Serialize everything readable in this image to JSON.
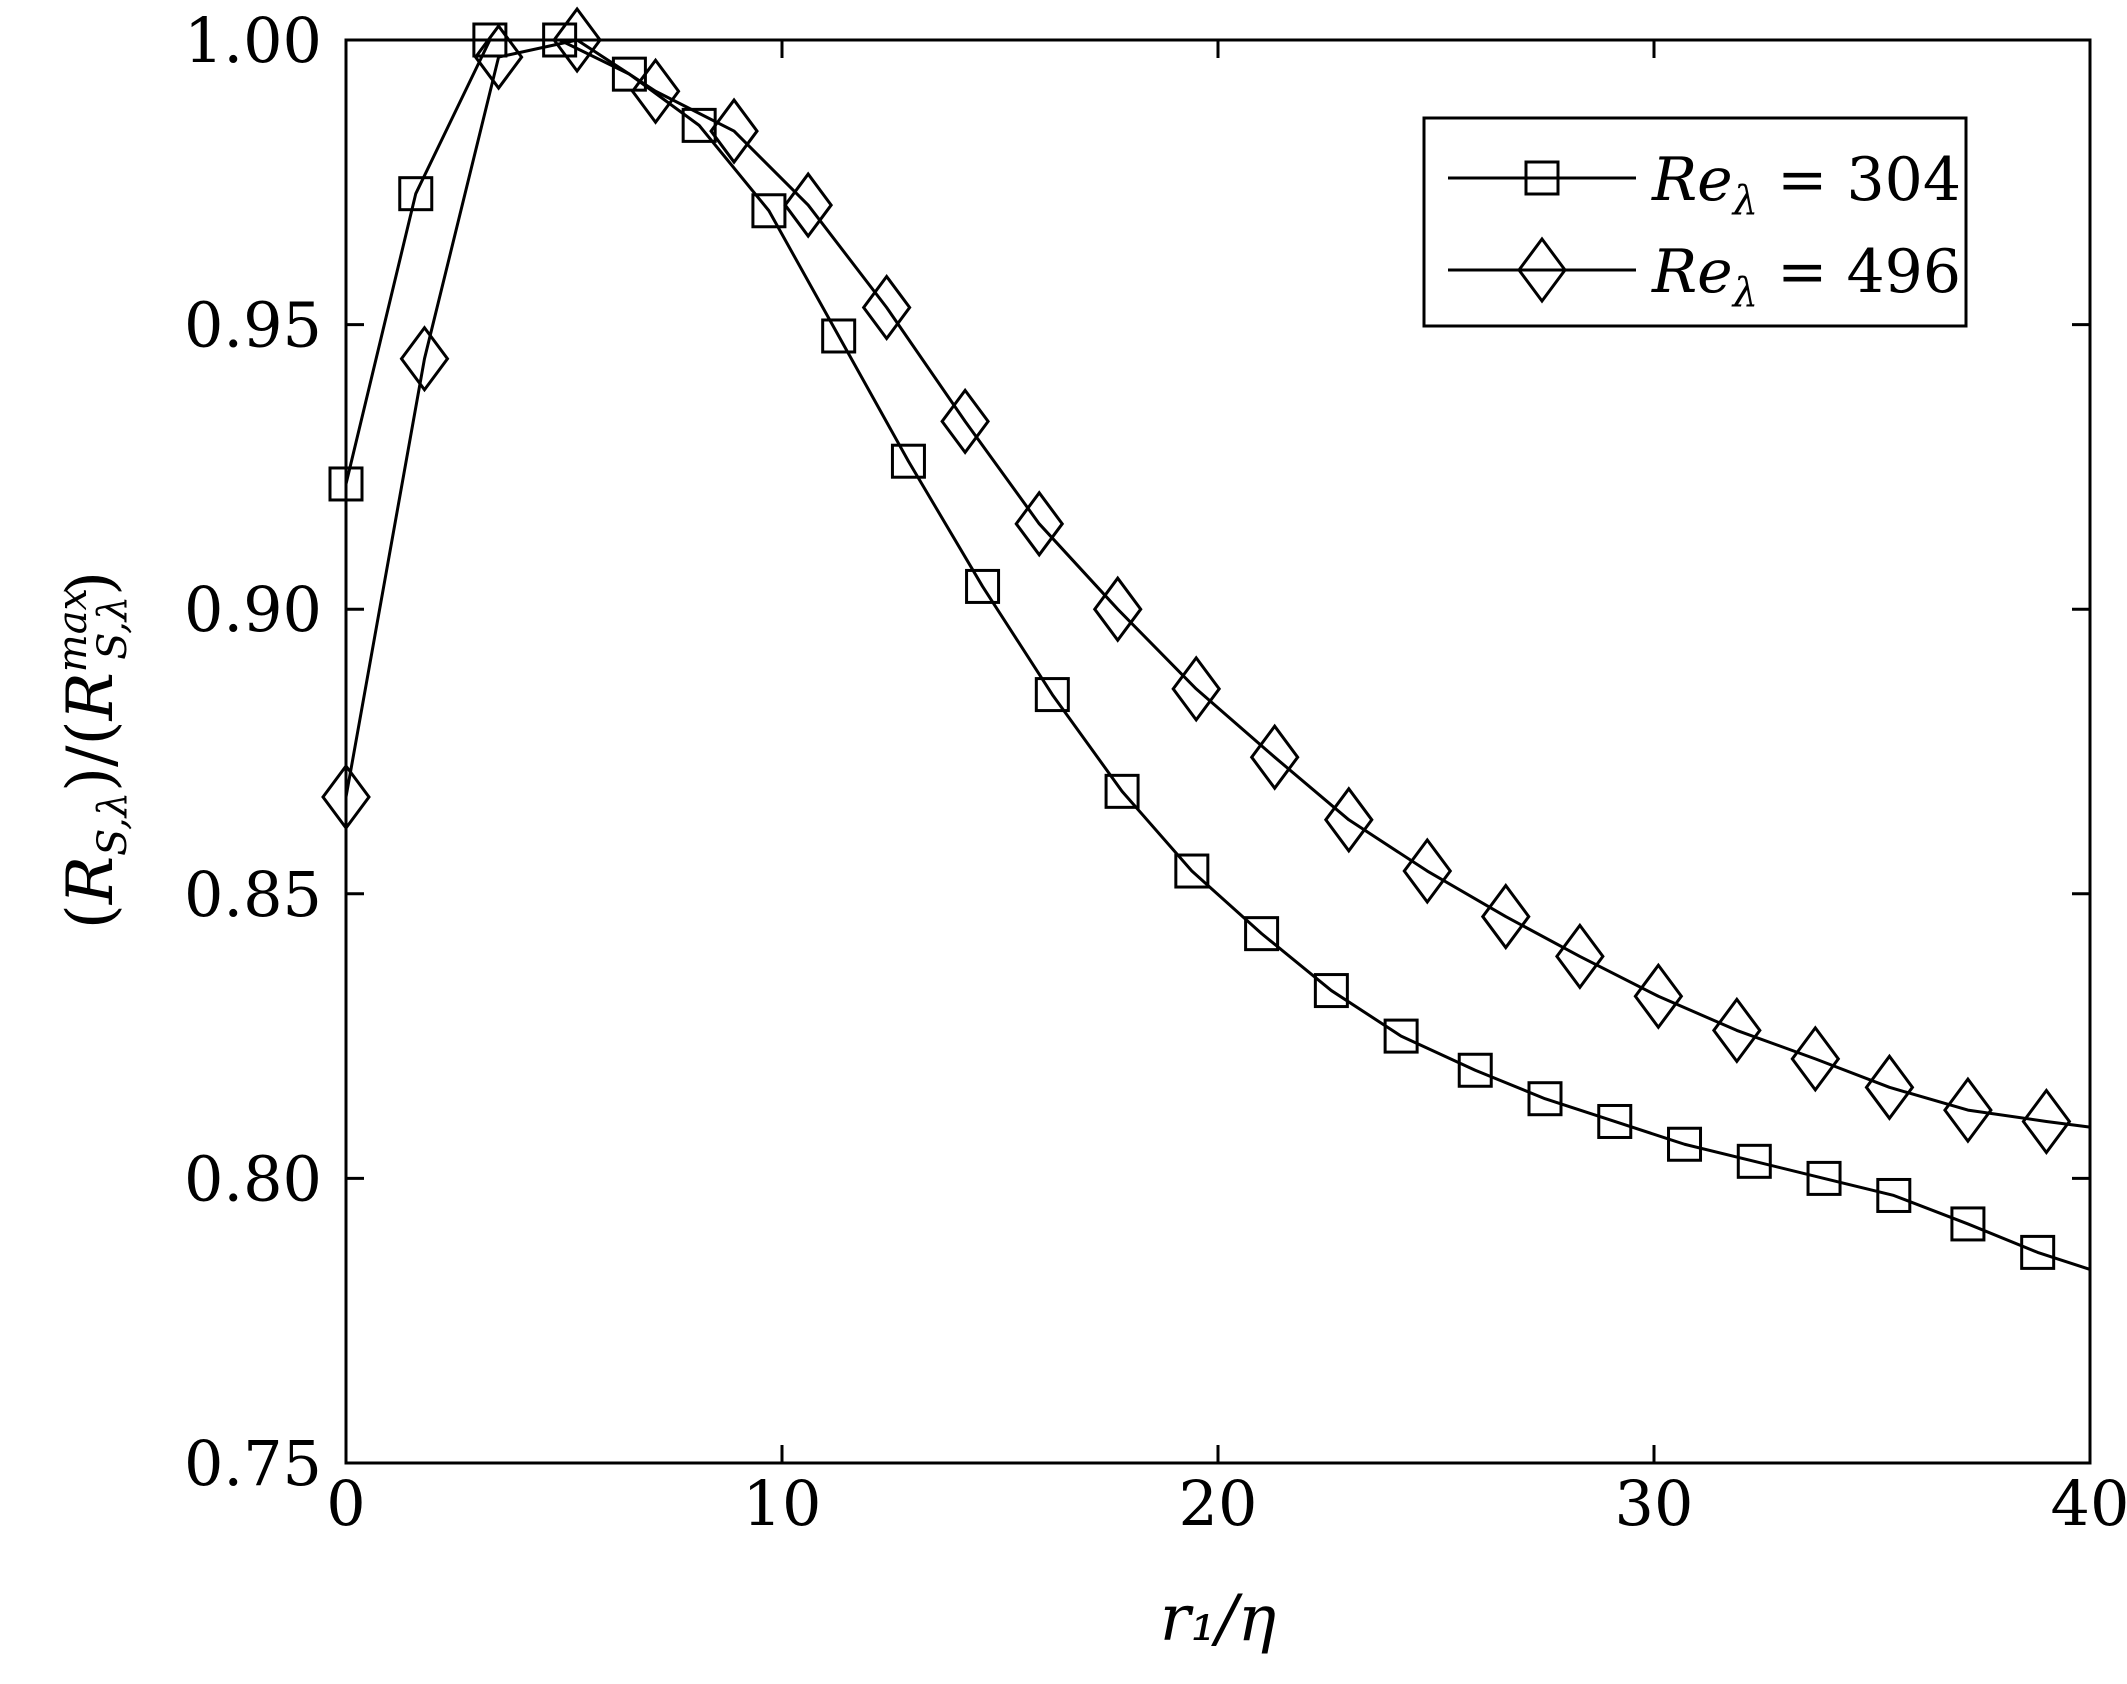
{
  "chart_data": {
    "type": "line",
    "title": "",
    "xlabel": "r₁/η",
    "ylabel": "(R_{S,λ})/(R_{S,λ}^{max})",
    "xlim": [
      0,
      40
    ],
    "ylim": [
      0.75,
      1.0
    ],
    "x_ticks": [
      0,
      10,
      20,
      30,
      40
    ],
    "x_tick_labels": [
      "0",
      "10",
      "20",
      "30",
      "40"
    ],
    "y_ticks": [
      0.75,
      0.8,
      0.85,
      0.9,
      0.95,
      1.0
    ],
    "y_tick_labels": [
      "0.75",
      "0.80",
      "0.85",
      "0.90",
      "0.95",
      "1.00"
    ],
    "grid": false,
    "legend_position": "top-right",
    "series": [
      {
        "name": "Re_λ = 304",
        "legend_label": {
          "main": "Re",
          "sub": "λ",
          "rest": " = 304"
        },
        "marker": "square",
        "color": "#000000",
        "x": [
          0.0,
          1.6,
          3.3,
          4.9,
          6.5,
          8.1,
          9.7,
          11.3,
          12.9,
          14.6,
          16.2,
          17.8,
          19.4,
          21.0,
          22.6,
          24.2,
          25.9,
          27.5,
          29.1,
          30.7,
          32.3,
          33.9,
          35.5,
          37.2,
          38.8
        ],
        "y": [
          0.922,
          0.973,
          1.0,
          1.0,
          0.994,
          0.985,
          0.97,
          0.948,
          0.926,
          0.904,
          0.885,
          0.868,
          0.854,
          0.843,
          0.833,
          0.825,
          0.819,
          0.814,
          0.81,
          0.806,
          0.803,
          0.8,
          0.797,
          0.792,
          0.787
        ],
        "line_end": {
          "x": 40.0,
          "y": 0.784
        }
      },
      {
        "name": "Re_λ = 496",
        "legend_label": {
          "main": "Re",
          "sub": "λ",
          "rest": " = 496"
        },
        "marker": "diamond",
        "color": "#000000",
        "x": [
          0.0,
          1.8,
          3.5,
          5.3,
          7.1,
          8.9,
          10.6,
          12.4,
          14.2,
          15.9,
          17.7,
          19.5,
          21.3,
          23.0,
          24.8,
          26.6,
          28.3,
          30.1,
          31.9,
          33.7,
          35.4,
          37.2,
          39.0
        ],
        "y": [
          0.867,
          0.944,
          0.997,
          1.0,
          0.991,
          0.984,
          0.971,
          0.953,
          0.933,
          0.915,
          0.9,
          0.886,
          0.874,
          0.863,
          0.854,
          0.846,
          0.839,
          0.832,
          0.826,
          0.821,
          0.816,
          0.812,
          0.81
        ],
        "line_end": {
          "x": 40.0,
          "y": 0.809
        }
      }
    ]
  }
}
